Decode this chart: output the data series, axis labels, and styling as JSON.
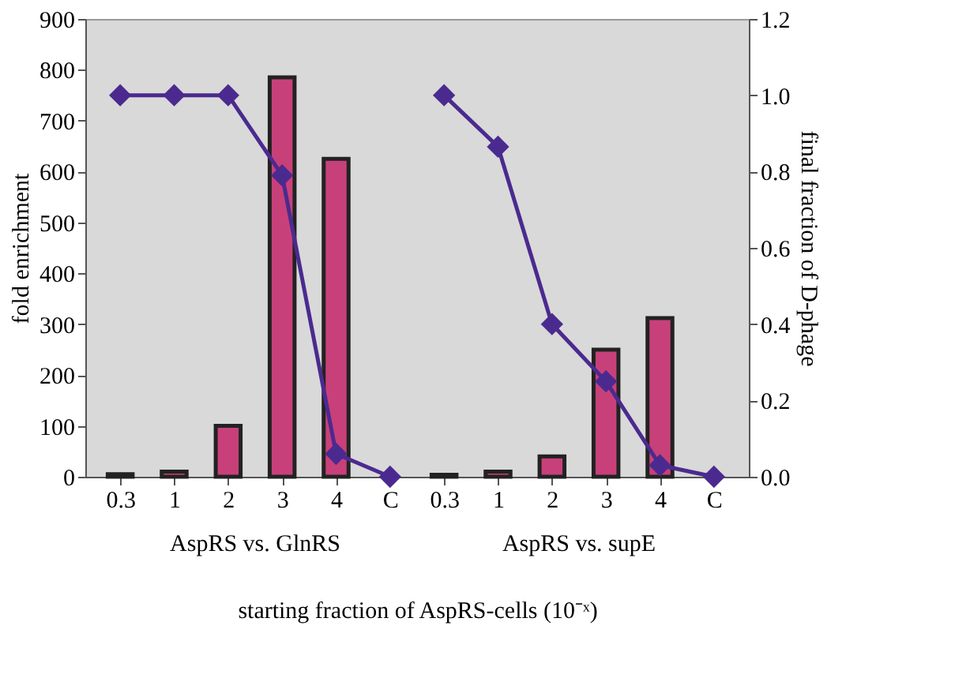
{
  "chart_data": {
    "type": "bar",
    "xlabel": "starting fraction of AspRS-cells (10⁻ˣ)",
    "ylabel": "fold enrichment",
    "y2label": "final fraction of D-phage",
    "categories": [
      "0.3",
      "1",
      "2",
      "3",
      "4",
      "C",
      "0.3",
      "1",
      "2",
      "3",
      "4",
      "C"
    ],
    "series": [
      {
        "type": "bar",
        "color": "#c8407a",
        "values": [
          5,
          10,
          100,
          785,
          625,
          null,
          4,
          10,
          40,
          250,
          312,
          null
        ]
      },
      {
        "type": "line",
        "axis": "y2",
        "color": "#4b2a8f",
        "marker": "diamond",
        "values": [
          1.0,
          1.0,
          1.0,
          0.79,
          0.06,
          0.0,
          null,
          null,
          null,
          null,
          null,
          null
        ]
      },
      {
        "type": "line",
        "axis": "y2",
        "color": "#4b2a8f",
        "marker": "diamond",
        "values": [
          null,
          null,
          null,
          null,
          null,
          null,
          1.0,
          0.865,
          0.4,
          0.25,
          0.03,
          0.0
        ]
      }
    ],
    "ylim": [
      0,
      900
    ],
    "yticks": [
      0,
      100,
      200,
      300,
      400,
      500,
      600,
      700,
      800,
      900
    ],
    "y2lim": [
      0,
      1.2
    ],
    "y2ticks": [
      {
        "value": 0,
        "label": "0.0"
      },
      {
        "value": 0.2,
        "label": "0.2"
      },
      {
        "value": 0.4,
        "label": "0.4"
      },
      {
        "value": 0.6,
        "label": "0.6"
      },
      {
        "value": 0.8,
        "label": "0.8"
      },
      {
        "value": 1.0,
        "label": "1.0"
      },
      {
        "value": 1.2,
        "label": "1.2"
      }
    ],
    "annotations": [
      "AspRS vs. GlnRS",
      "AspRS vs. supE"
    ],
    "grid": false
  }
}
